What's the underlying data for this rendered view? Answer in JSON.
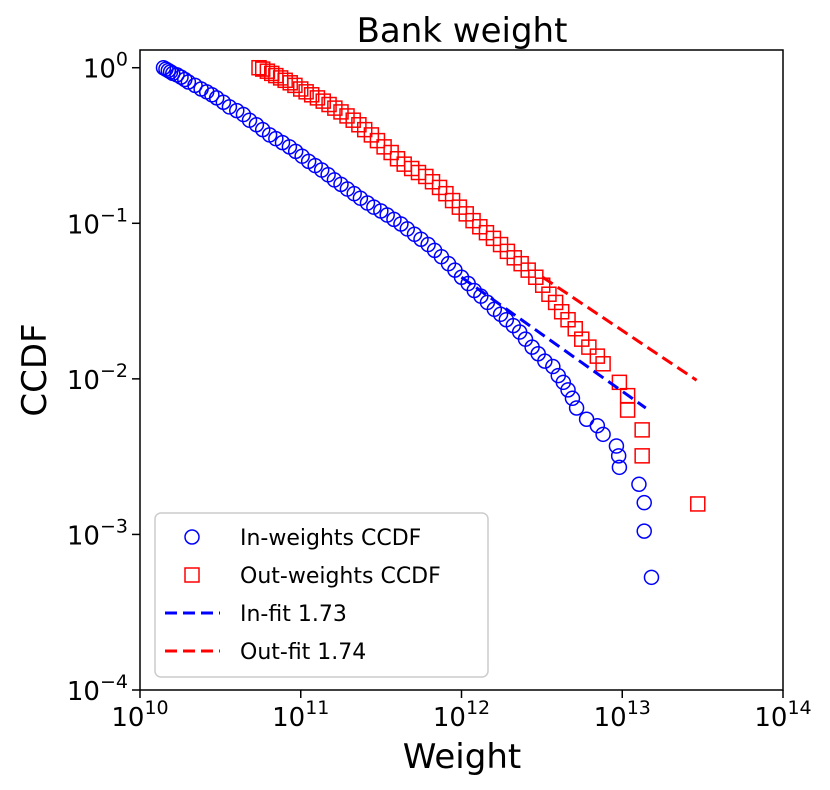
{
  "chart_data": {
    "type": "scatter",
    "title": "Bank weight",
    "xlabel": "Weight",
    "ylabel": "CCDF",
    "xscale": "log",
    "yscale": "log",
    "xlim": [
      10000000000.0,
      100000000000000.0
    ],
    "ylim": [
      0.0001,
      1.3
    ],
    "x_ticks": [
      {
        "value": 10000000000.0,
        "base": "10",
        "exp": "10"
      },
      {
        "value": 100000000000.0,
        "base": "10",
        "exp": "11"
      },
      {
        "value": 1000000000000.0,
        "base": "10",
        "exp": "12"
      },
      {
        "value": 10000000000000.0,
        "base": "10",
        "exp": "13"
      },
      {
        "value": 100000000000000.0,
        "base": "10",
        "exp": "14"
      }
    ],
    "y_ticks": [
      {
        "value": 0.0001,
        "base": "10",
        "exp": "−4"
      },
      {
        "value": 0.001,
        "base": "10",
        "exp": "−3"
      },
      {
        "value": 0.01,
        "base": "10",
        "exp": "−2"
      },
      {
        "value": 0.1,
        "base": "10",
        "exp": "−1"
      },
      {
        "value": 1,
        "base": "10",
        "exp": "0"
      }
    ],
    "grid": false,
    "legend_position": "lower-left",
    "series": [
      {
        "name": "In-weights CCDF",
        "marker": "circle",
        "color": "#0000ff",
        "points": [
          [
            14000000000.0,
            1.0
          ],
          [
            14500000000.0,
            0.98
          ],
          [
            15000000000.0,
            0.96
          ],
          [
            15500000000.0,
            0.94
          ],
          [
            16000000000.0,
            0.92
          ],
          [
            17000000000.0,
            0.9
          ],
          [
            18000000000.0,
            0.87
          ],
          [
            19000000000.0,
            0.84
          ],
          [
            20000000000.0,
            0.81
          ],
          [
            22000000000.0,
            0.77
          ],
          [
            24000000000.0,
            0.73
          ],
          [
            26000000000.0,
            0.7
          ],
          [
            28000000000.0,
            0.67
          ],
          [
            30000000000.0,
            0.64
          ],
          [
            33000000000.0,
            0.6
          ],
          [
            36000000000.0,
            0.56
          ],
          [
            40000000000.0,
            0.53
          ],
          [
            44000000000.0,
            0.5
          ],
          [
            48000000000.0,
            0.46
          ],
          [
            53000000000.0,
            0.43
          ],
          [
            58000000000.0,
            0.4
          ],
          [
            64000000000.0,
            0.37
          ],
          [
            70000000000.0,
            0.35
          ],
          [
            77000000000.0,
            0.33
          ],
          [
            85000000000.0,
            0.31
          ],
          [
            93000000000.0,
            0.29
          ],
          [
            102000000000.0,
            0.27
          ],
          [
            112000000000.0,
            0.25
          ],
          [
            123000000000.0,
            0.235
          ],
          [
            135000000000.0,
            0.22
          ],
          [
            148000000000.0,
            0.205
          ],
          [
            162000000000.0,
            0.19
          ],
          [
            178000000000.0,
            0.178
          ],
          [
            195000000000.0,
            0.166
          ],
          [
            215000000000.0,
            0.155
          ],
          [
            235000000000.0,
            0.145
          ],
          [
            260000000000.0,
            0.135
          ],
          [
            285000000000.0,
            0.127
          ],
          [
            315000000000.0,
            0.12
          ],
          [
            345000000000.0,
            0.113
          ],
          [
            380000000000.0,
            0.106
          ],
          [
            420000000000.0,
            0.099
          ],
          [
            460000000000.0,
            0.092
          ],
          [
            510000000000.0,
            0.085
          ],
          [
            560000000000.0,
            0.079
          ],
          [
            620000000000.0,
            0.073
          ],
          [
            680000000000.0,
            0.067
          ],
          [
            750000000000.0,
            0.061
          ],
          [
            830000000000.0,
            0.055
          ],
          [
            910000000000.0,
            0.05
          ],
          [
            1000000000000.0,
            0.045
          ],
          [
            1100000000000.0,
            0.041
          ],
          [
            1200000000000.0,
            0.037
          ],
          [
            1320000000000.0,
            0.034
          ],
          [
            1450000000000.0,
            0.031
          ],
          [
            1600000000000.0,
            0.028
          ],
          [
            1750000000000.0,
            0.026
          ],
          [
            1900000000000.0,
            0.024
          ],
          [
            2100000000000.0,
            0.022
          ],
          [
            2300000000000.0,
            0.02
          ],
          [
            2500000000000.0,
            0.018
          ],
          [
            2750000000000.0,
            0.016
          ],
          [
            3000000000000.0,
            0.0145
          ],
          [
            3300000000000.0,
            0.013
          ],
          [
            3700000000000.0,
            0.012
          ],
          [
            4000000000000.0,
            0.0105
          ],
          [
            4300000000000.0,
            0.0095
          ],
          [
            4600000000000.0,
            0.0085
          ],
          [
            4900000000000.0,
            0.0075
          ],
          [
            5200000000000.0,
            0.0065
          ],
          [
            6000000000000.0,
            0.0055
          ],
          [
            7000000000000.0,
            0.005
          ],
          [
            7600000000000.0,
            0.0044
          ],
          [
            9200000000000.0,
            0.0037
          ],
          [
            9500000000000.0,
            0.0032
          ],
          [
            9600000000000.0,
            0.0027
          ],
          [
            12700000000000.0,
            0.0021
          ],
          [
            13700000000000.0,
            0.0016
          ],
          [
            13700000000000.0,
            0.00105
          ],
          [
            15200000000000.0,
            0.00053
          ]
        ]
      },
      {
        "name": "Out-weights CCDF",
        "marker": "square",
        "color": "#ff0000",
        "points": [
          [
            55000000000.0,
            1.0
          ],
          [
            58000000000.0,
            0.98
          ],
          [
            62000000000.0,
            0.95
          ],
          [
            66000000000.0,
            0.92
          ],
          [
            70000000000.0,
            0.89
          ],
          [
            75000000000.0,
            0.86
          ],
          [
            80000000000.0,
            0.83
          ],
          [
            86000000000.0,
            0.8
          ],
          [
            92000000000.0,
            0.77
          ],
          [
            100000000000.0,
            0.73
          ],
          [
            108000000000.0,
            0.7
          ],
          [
            117000000000.0,
            0.67
          ],
          [
            127000000000.0,
            0.64
          ],
          [
            138000000000.0,
            0.61
          ],
          [
            150000000000.0,
            0.58
          ],
          [
            163000000000.0,
            0.55
          ],
          [
            178000000000.0,
            0.52
          ],
          [
            194000000000.0,
            0.49
          ],
          [
            212000000000.0,
            0.46
          ],
          [
            230000000000.0,
            0.43
          ],
          [
            250000000000.0,
            0.4
          ],
          [
            275000000000.0,
            0.37
          ],
          [
            300000000000.0,
            0.34
          ],
          [
            330000000000.0,
            0.31
          ],
          [
            365000000000.0,
            0.285
          ],
          [
            400000000000.0,
            0.26
          ],
          [
            440000000000.0,
            0.24
          ],
          [
            490000000000.0,
            0.225
          ],
          [
            540000000000.0,
            0.212
          ],
          [
            600000000000.0,
            0.2
          ],
          [
            660000000000.0,
            0.185
          ],
          [
            730000000000.0,
            0.17
          ],
          [
            800000000000.0,
            0.155
          ],
          [
            880000000000.0,
            0.14
          ],
          [
            970000000000.0,
            0.127
          ],
          [
            1070000000000.0,
            0.115
          ],
          [
            1180000000000.0,
            0.104
          ],
          [
            1300000000000.0,
            0.095
          ],
          [
            1430000000000.0,
            0.087
          ],
          [
            1580000000000.0,
            0.08
          ],
          [
            1750000000000.0,
            0.073
          ],
          [
            1930000000000.0,
            0.066
          ],
          [
            2130000000000.0,
            0.06
          ],
          [
            2350000000000.0,
            0.055
          ],
          [
            2600000000000.0,
            0.05
          ],
          [
            2900000000000.0,
            0.045
          ],
          [
            3200000000000.0,
            0.04
          ],
          [
            3500000000000.0,
            0.035
          ],
          [
            3850000000000.0,
            0.031
          ],
          [
            4200000000000.0,
            0.027
          ],
          [
            4600000000000.0,
            0.024
          ],
          [
            5100000000000.0,
            0.021
          ],
          [
            5600000000000.0,
            0.018
          ],
          [
            6200000000000.0,
            0.016
          ],
          [
            7000000000000.0,
            0.014
          ],
          [
            7600000000000.0,
            0.0125
          ],
          [
            9600000000000.0,
            0.0095
          ],
          [
            10800000000000.0,
            0.0078
          ],
          [
            10800000000000.0,
            0.0063
          ],
          [
            13300000000000.0,
            0.0047
          ],
          [
            13300000000000.0,
            0.0032
          ],
          [
            29500000000000.0,
            0.00157
          ]
        ]
      },
      {
        "name": "In-fit 1.73",
        "line": "dashed",
        "color": "#0000ff",
        "points": [
          [
            1000000000000.0,
            0.045
          ],
          [
            14000000000000.0,
            0.0065
          ]
        ]
      },
      {
        "name": "Out-fit 1.74",
        "line": "dashed",
        "color": "#ff0000",
        "points": [
          [
            3200000000000.0,
            0.045
          ],
          [
            29000000000000.0,
            0.0098
          ]
        ]
      }
    ]
  }
}
